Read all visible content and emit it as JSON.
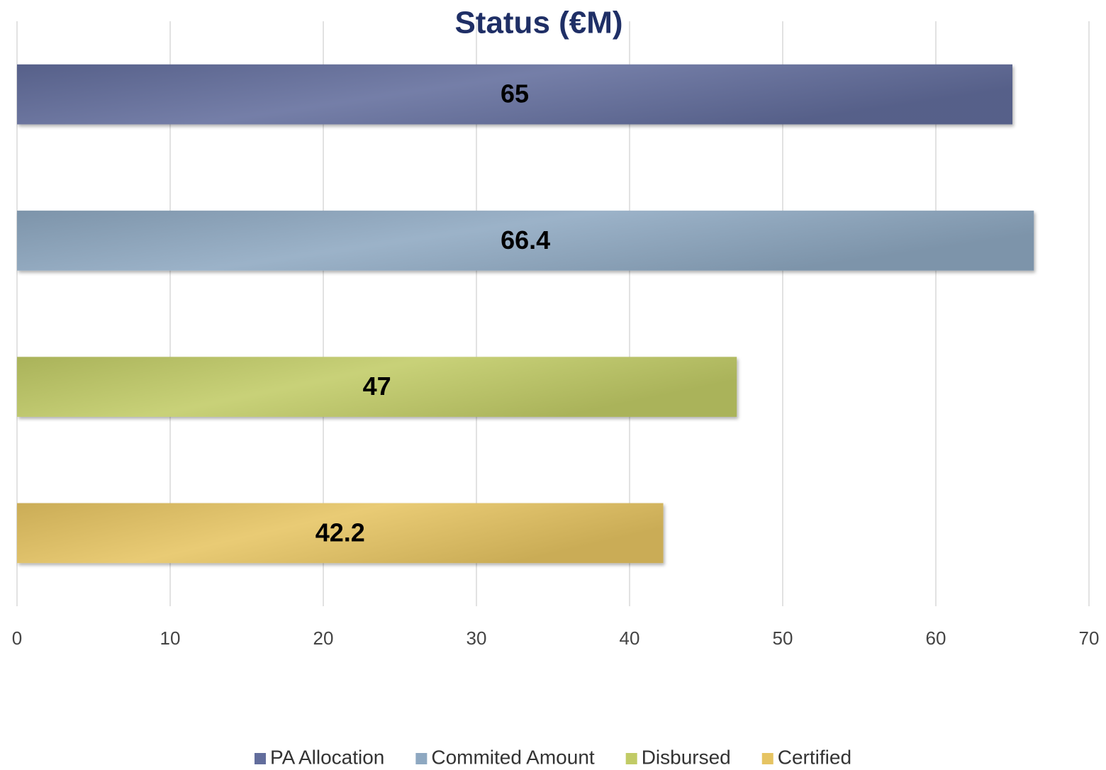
{
  "chart_data": {
    "type": "bar",
    "orientation": "horizontal",
    "title": "Status (€M)",
    "series": [
      {
        "name": "PA Allocation",
        "color": "#626d9c",
        "values": [
          65
        ]
      },
      {
        "name": "Commited Amount",
        "color": "#8ea8c1",
        "values": [
          66.4
        ]
      },
      {
        "name": "Disbursed",
        "color": "#c1cb66",
        "values": [
          47
        ]
      },
      {
        "name": "Certified",
        "color": "#e6c462",
        "values": [
          42.2
        ]
      }
    ],
    "xlim": [
      0,
      70
    ],
    "xticks": [
      0,
      10,
      20,
      30,
      40,
      50,
      60,
      70
    ],
    "grid": true,
    "legend": "bottom"
  }
}
